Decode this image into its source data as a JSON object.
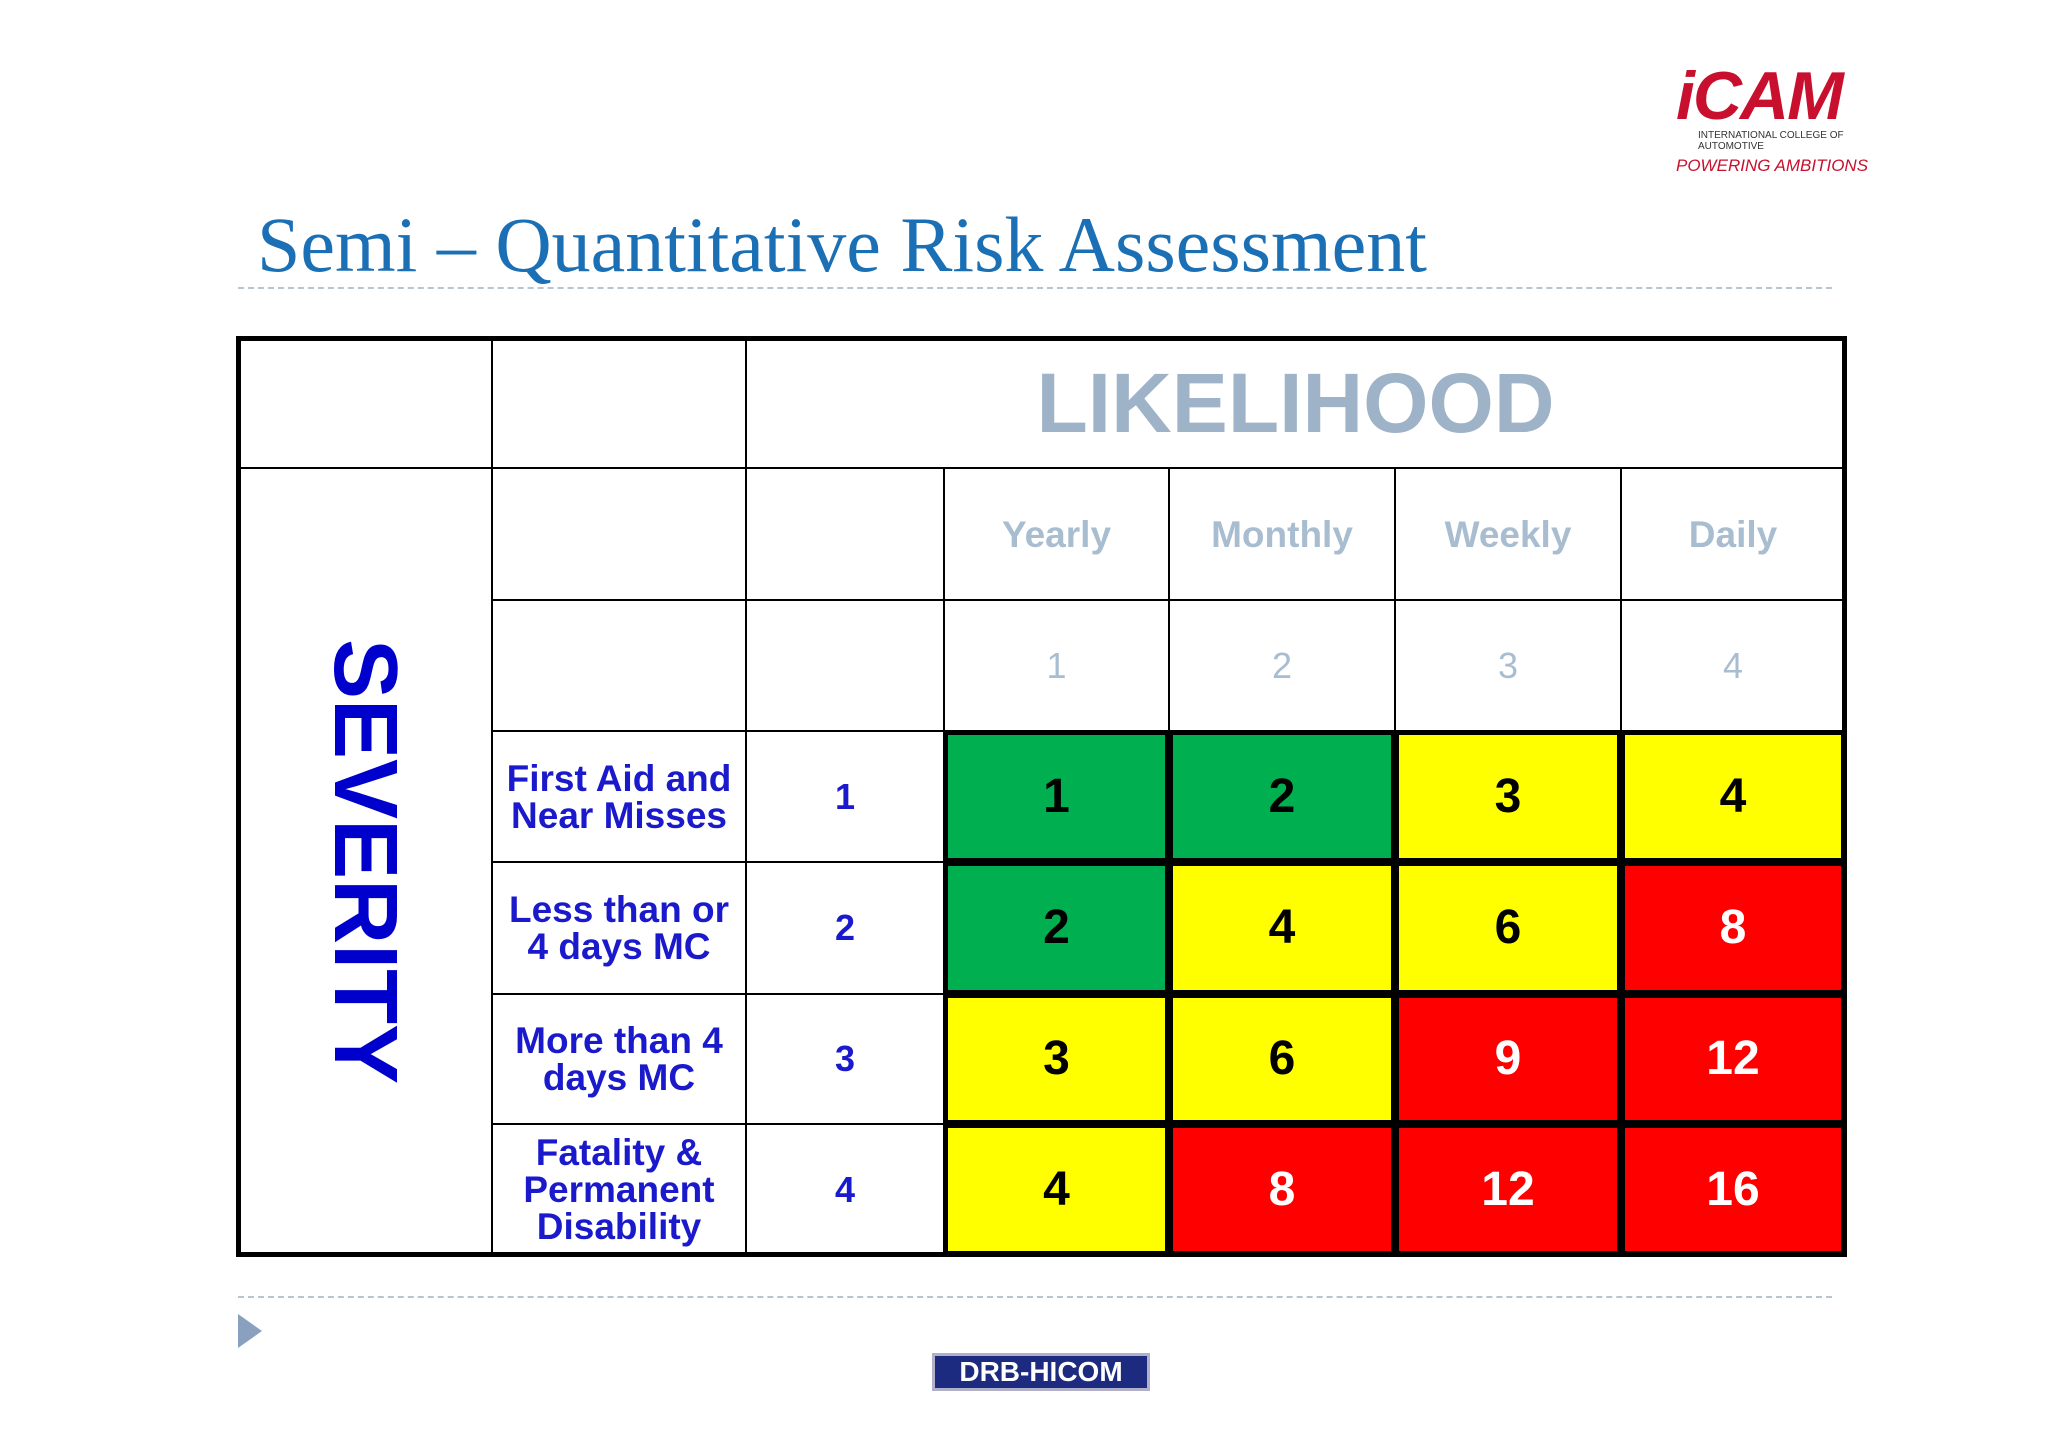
{
  "logo": {
    "name": "iCAM",
    "subtitle": "INTERNATIONAL COLLEGE OF AUTOMOTIVE",
    "tagline": "POWERING AMBITIONS"
  },
  "title": "Semi – Quantitative Risk Assessment",
  "matrix": {
    "likelihood_label": "LIKELIHOOD",
    "severity_label": "SEVERITY",
    "likelihood": [
      {
        "label": "Yearly",
        "score": 1
      },
      {
        "label": "Monthly",
        "score": 2
      },
      {
        "label": "Weekly",
        "score": 3
      },
      {
        "label": "Daily",
        "score": 4
      }
    ],
    "severity": [
      {
        "label": "First Aid and Near Misses",
        "score": 1
      },
      {
        "label": "Less than or 4 days MC",
        "score": 2
      },
      {
        "label": "More than 4 days MC",
        "score": 3
      },
      {
        "label": "Fatality & Permanent Disability",
        "score": 4
      }
    ],
    "cells": [
      [
        {
          "value": 1,
          "color": "#00b050"
        },
        {
          "value": 2,
          "color": "#00b050"
        },
        {
          "value": 3,
          "color": "#ffff00"
        },
        {
          "value": 4,
          "color": "#ffff00"
        }
      ],
      [
        {
          "value": 2,
          "color": "#00b050"
        },
        {
          "value": 4,
          "color": "#ffff00"
        },
        {
          "value": 6,
          "color": "#ffff00"
        },
        {
          "value": 8,
          "color": "#ff0000"
        }
      ],
      [
        {
          "value": 3,
          "color": "#ffff00"
        },
        {
          "value": 6,
          "color": "#ffff00"
        },
        {
          "value": 9,
          "color": "#ff0000"
        },
        {
          "value": 12,
          "color": "#ff0000"
        }
      ],
      [
        {
          "value": 4,
          "color": "#ffff00"
        },
        {
          "value": 8,
          "color": "#ff0000"
        },
        {
          "value": 12,
          "color": "#ff0000"
        },
        {
          "value": 16,
          "color": "#ff0000"
        }
      ]
    ]
  },
  "footer": "DRB-HICOM"
}
